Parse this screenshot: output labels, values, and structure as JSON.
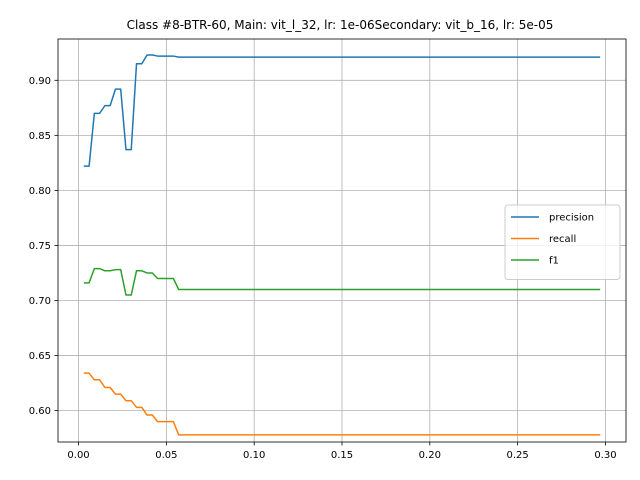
{
  "chart_data": {
    "type": "line",
    "title": "Class #8-BTR-60, Main: vit_l_32, lr: 1e-06Secondary: vit_b_16, lr: 5e-05",
    "xlabel": "",
    "ylabel": "",
    "xlim": [
      -0.0117,
      0.3117
    ],
    "ylim": [
      0.5715,
      0.9375
    ],
    "grid": true,
    "legend_position": "center-right",
    "x_ticks": [
      0.0,
      0.05,
      0.1,
      0.15,
      0.2,
      0.25,
      0.3
    ],
    "x_tick_labels": [
      "0.00",
      "0.05",
      "0.10",
      "0.15",
      "0.20",
      "0.25",
      "0.30"
    ],
    "y_ticks": [
      0.6,
      0.65,
      0.7,
      0.75,
      0.8,
      0.85,
      0.9
    ],
    "y_tick_labels": [
      "0.60",
      "0.65",
      "0.70",
      "0.75",
      "0.80",
      "0.85",
      "0.90"
    ],
    "series": [
      {
        "name": "precision",
        "color": "#1f77b4",
        "points": [
          [
            0.003,
            0.822
          ],
          [
            0.006,
            0.822
          ],
          [
            0.009,
            0.87
          ],
          [
            0.012,
            0.87
          ],
          [
            0.015,
            0.877
          ],
          [
            0.018,
            0.877
          ],
          [
            0.021,
            0.892
          ],
          [
            0.024,
            0.892
          ],
          [
            0.027,
            0.837
          ],
          [
            0.03,
            0.837
          ],
          [
            0.033,
            0.915
          ],
          [
            0.036,
            0.915
          ],
          [
            0.039,
            0.923
          ],
          [
            0.042,
            0.923
          ],
          [
            0.045,
            0.922
          ],
          [
            0.048,
            0.922
          ],
          [
            0.051,
            0.922
          ],
          [
            0.054,
            0.922
          ],
          [
            0.057,
            0.921
          ],
          [
            0.06,
            0.921
          ],
          [
            0.1,
            0.921
          ],
          [
            0.15,
            0.921
          ],
          [
            0.2,
            0.921
          ],
          [
            0.25,
            0.921
          ],
          [
            0.297,
            0.921
          ]
        ]
      },
      {
        "name": "recall",
        "color": "#ff7f0e",
        "points": [
          [
            0.003,
            0.634
          ],
          [
            0.006,
            0.634
          ],
          [
            0.009,
            0.628
          ],
          [
            0.012,
            0.628
          ],
          [
            0.015,
            0.621
          ],
          [
            0.018,
            0.621
          ],
          [
            0.021,
            0.615
          ],
          [
            0.024,
            0.615
          ],
          [
            0.027,
            0.609
          ],
          [
            0.03,
            0.609
          ],
          [
            0.033,
            0.603
          ],
          [
            0.036,
            0.603
          ],
          [
            0.039,
            0.596
          ],
          [
            0.042,
            0.596
          ],
          [
            0.045,
            0.59
          ],
          [
            0.048,
            0.59
          ],
          [
            0.051,
            0.59
          ],
          [
            0.054,
            0.59
          ],
          [
            0.057,
            0.578
          ],
          [
            0.06,
            0.578
          ],
          [
            0.1,
            0.578
          ],
          [
            0.15,
            0.578
          ],
          [
            0.2,
            0.578
          ],
          [
            0.25,
            0.578
          ],
          [
            0.297,
            0.578
          ]
        ]
      },
      {
        "name": "f1",
        "color": "#2ca02c",
        "points": [
          [
            0.003,
            0.716
          ],
          [
            0.006,
            0.716
          ],
          [
            0.009,
            0.729
          ],
          [
            0.012,
            0.729
          ],
          [
            0.015,
            0.727
          ],
          [
            0.018,
            0.727
          ],
          [
            0.021,
            0.728
          ],
          [
            0.024,
            0.728
          ],
          [
            0.027,
            0.705
          ],
          [
            0.03,
            0.705
          ],
          [
            0.033,
            0.727
          ],
          [
            0.036,
            0.727
          ],
          [
            0.039,
            0.725
          ],
          [
            0.042,
            0.725
          ],
          [
            0.045,
            0.72
          ],
          [
            0.048,
            0.72
          ],
          [
            0.051,
            0.72
          ],
          [
            0.054,
            0.72
          ],
          [
            0.057,
            0.71
          ],
          [
            0.06,
            0.71
          ],
          [
            0.1,
            0.71
          ],
          [
            0.15,
            0.71
          ],
          [
            0.2,
            0.71
          ],
          [
            0.25,
            0.71
          ],
          [
            0.297,
            0.71
          ]
        ]
      }
    ]
  }
}
